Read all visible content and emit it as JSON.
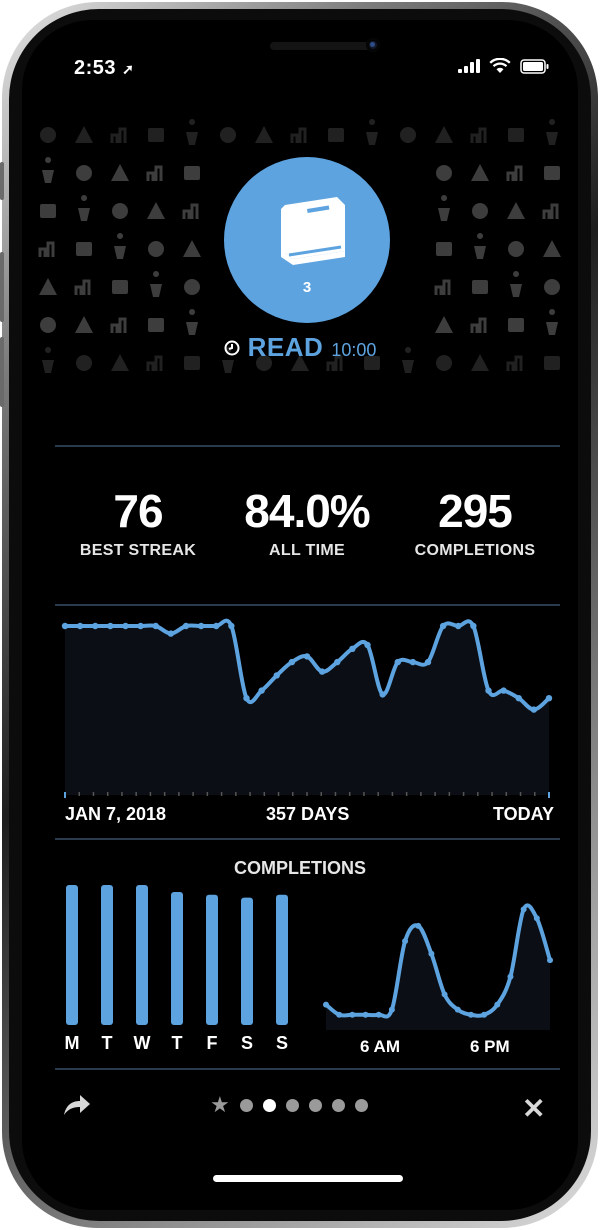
{
  "status_bar": {
    "time": "2:53"
  },
  "habit": {
    "icon": "book-icon",
    "count": "3",
    "name": "READ",
    "time": "10:00",
    "accent_color": "#5da3e0"
  },
  "stats": [
    {
      "value": "76",
      "label": "BEST STREAK"
    },
    {
      "value": "84.0%",
      "label": "ALL TIME"
    },
    {
      "value": "295",
      "label": "COMPLETIONS"
    }
  ],
  "timeline": {
    "start_label": "JAN 7, 2018",
    "middle_label": "357 DAYS",
    "end_label": "TODAY",
    "ylim": [
      0,
      100
    ],
    "values": [
      100,
      100,
      100,
      100,
      100,
      100,
      100,
      96,
      100,
      100,
      100,
      100,
      62,
      66,
      74,
      81,
      84,
      76,
      81,
      88,
      90,
      64,
      81,
      81,
      81,
      100,
      100,
      100,
      66,
      66,
      62,
      56,
      62
    ]
  },
  "completions": {
    "title": "COMPLETIONS",
    "weekdays": {
      "categories": [
        "M",
        "T",
        "W",
        "T",
        "F",
        "S",
        "S"
      ],
      "values": [
        100,
        100,
        100,
        95,
        93,
        91,
        93
      ],
      "ylim": [
        0,
        100
      ]
    },
    "hourly": {
      "labels": [
        "6 AM",
        "6 PM"
      ],
      "values": [
        20,
        12,
        12,
        12,
        12,
        16,
        70,
        82,
        60,
        28,
        16,
        12,
        12,
        20,
        42,
        95,
        88,
        55
      ],
      "ylim": [
        0,
        100
      ]
    }
  },
  "footer": {
    "share_icon": "share-icon",
    "favorite_icon": "star-icon",
    "close_icon": "close-icon",
    "page_count": 6,
    "active_page": 2
  }
}
